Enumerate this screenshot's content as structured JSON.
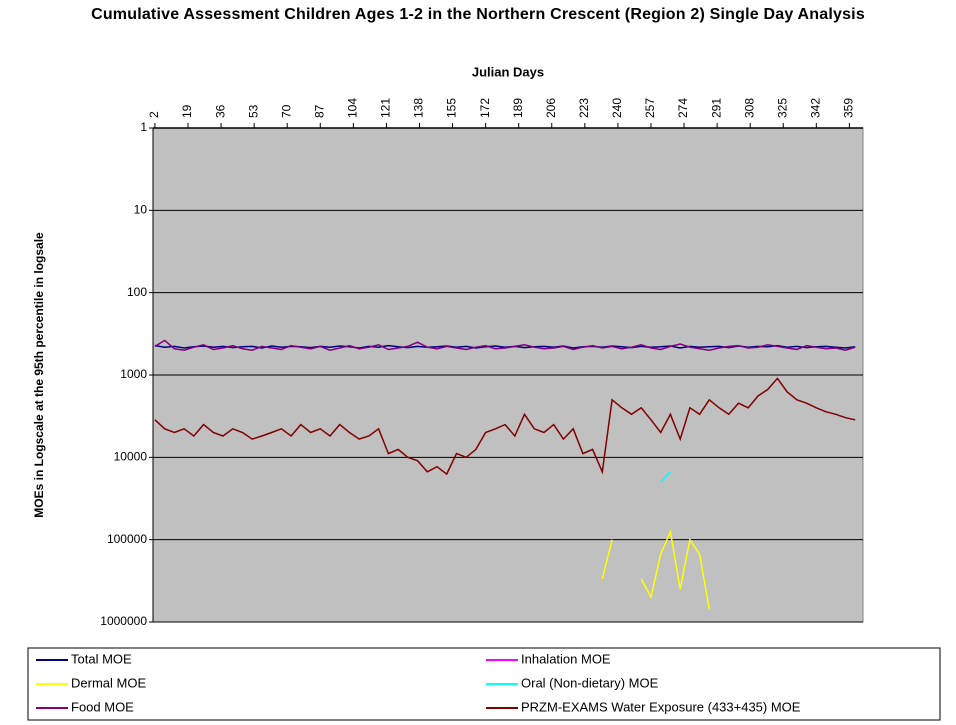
{
  "chart_data": {
    "type": "line",
    "title": "Cumulative Assessment Children Ages 1-2 in the Northern Crescent (Region 2) Single Day Analysis",
    "x_label": "Julian Days",
    "y_label": "MOEs in Logscale at the 95th percentile in logsale",
    "x": [
      2,
      7,
      12,
      17,
      22,
      27,
      32,
      37,
      42,
      47,
      52,
      57,
      62,
      67,
      72,
      77,
      82,
      87,
      92,
      97,
      102,
      107,
      112,
      117,
      122,
      127,
      132,
      137,
      142,
      147,
      152,
      157,
      162,
      167,
      172,
      177,
      182,
      187,
      192,
      197,
      202,
      207,
      212,
      217,
      222,
      227,
      232,
      237,
      242,
      247,
      252,
      257,
      262,
      267,
      272,
      277,
      282,
      287,
      292,
      297,
      302,
      307,
      312,
      317,
      322,
      327,
      332,
      337,
      342,
      347,
      352,
      357,
      362
    ],
    "xlim": [
      1,
      366
    ],
    "xticks": [
      2,
      19,
      36,
      53,
      70,
      87,
      104,
      121,
      138,
      155,
      172,
      189,
      206,
      223,
      240,
      257,
      274,
      291,
      308,
      325,
      342,
      359
    ],
    "ylim": [
      1,
      1000000
    ],
    "yticks": [
      1,
      10,
      100,
      1000,
      10000,
      100000,
      1000000
    ],
    "y_scale": "log",
    "y_reversed": true,
    "x_axis_position": "top",
    "grid": true,
    "plot_background": "#c0c0c0",
    "legend_position": "bottom",
    "series": [
      {
        "name": "Total MOE",
        "color": "#000080",
        "values": [
          440,
          460,
          450,
          470,
          455,
          445,
          460,
          450,
          465,
          455,
          450,
          470,
          445,
          460,
          450,
          455,
          465,
          450,
          460,
          445,
          455,
          470,
          450,
          460,
          440,
          455,
          465,
          450,
          460,
          455,
          445,
          460,
          450,
          470,
          455,
          445,
          460,
          450,
          465,
          455,
          450,
          460,
          445,
          470,
          455,
          450,
          460,
          445,
          455,
          465,
          450,
          460,
          455,
          445,
          470,
          450,
          460,
          455,
          450,
          465,
          445,
          460,
          450,
          455,
          440,
          460,
          450,
          465,
          455,
          450,
          460,
          470,
          455
        ]
      },
      {
        "name": "Inhalation MOE",
        "color": "#ff00ff",
        "values": [
          null,
          null,
          null,
          null,
          null,
          null,
          null,
          null,
          null,
          null,
          null,
          null,
          null,
          null,
          null,
          null,
          null,
          null,
          null,
          null,
          null,
          null,
          null,
          null,
          null,
          null,
          null,
          null,
          null,
          null,
          null,
          null,
          null,
          null,
          null,
          null,
          null,
          null,
          null,
          null,
          null,
          null,
          null,
          null,
          null,
          null,
          null,
          null,
          null,
          null,
          null,
          null,
          null,
          null,
          null,
          null,
          null,
          null,
          null,
          null,
          null,
          null,
          null,
          null,
          null,
          null,
          null,
          null,
          null,
          null,
          null,
          null,
          null
        ]
      },
      {
        "name": "Dermal MOE",
        "color": "#ffff00",
        "values": [
          null,
          null,
          null,
          null,
          null,
          null,
          null,
          null,
          null,
          null,
          null,
          null,
          null,
          null,
          null,
          null,
          null,
          null,
          null,
          null,
          null,
          null,
          null,
          null,
          null,
          null,
          null,
          null,
          null,
          null,
          null,
          null,
          null,
          null,
          null,
          null,
          null,
          null,
          null,
          null,
          null,
          null,
          null,
          null,
          null,
          null,
          300000,
          100000,
          null,
          null,
          300000,
          500000,
          150000,
          80000,
          400000,
          100000,
          150000,
          700000,
          null,
          null,
          null,
          null,
          null,
          null,
          null,
          null,
          null,
          null,
          null,
          null,
          null,
          null,
          null
        ]
      },
      {
        "name": "Oral (Non-dietary) MOE",
        "color": "#00ffff",
        "values": [
          null,
          null,
          null,
          null,
          null,
          null,
          null,
          null,
          null,
          null,
          null,
          null,
          null,
          null,
          null,
          null,
          null,
          null,
          null,
          null,
          null,
          null,
          null,
          null,
          null,
          null,
          null,
          null,
          null,
          null,
          null,
          null,
          null,
          null,
          null,
          null,
          null,
          null,
          null,
          null,
          null,
          null,
          null,
          null,
          null,
          null,
          null,
          null,
          null,
          null,
          null,
          null,
          20000,
          15000,
          null,
          null,
          null,
          null,
          null,
          null,
          null,
          null,
          null,
          null,
          null,
          null,
          null,
          null,
          null,
          null,
          null,
          null,
          null
        ]
      },
      {
        "name": "Food MOE",
        "color": "#800080",
        "values": [
          450,
          380,
          480,
          500,
          460,
          430,
          490,
          470,
          440,
          480,
          500,
          450,
          470,
          490,
          440,
          460,
          480,
          450,
          500,
          470,
          440,
          480,
          460,
          430,
          490,
          470,
          450,
          400,
          460,
          480,
          450,
          470,
          490,
          460,
          440,
          480,
          470,
          450,
          430,
          460,
          480,
          470,
          450,
          490,
          460,
          440,
          470,
          450,
          480,
          460,
          430,
          470,
          490,
          450,
          420,
          460,
          480,
          500,
          470,
          450,
          440,
          470,
          460,
          430,
          450,
          470,
          490,
          440,
          460,
          480,
          470,
          500,
          460
        ]
      },
      {
        "name": "PRZM-EXAMS Water Exposure (433+435) MOE",
        "color": "#800000",
        "values": [
          3500,
          4500,
          5000,
          4500,
          5500,
          4000,
          5000,
          5500,
          4500,
          5000,
          6000,
          5500,
          5000,
          4500,
          5500,
          4000,
          5000,
          4500,
          5500,
          4000,
          5000,
          6000,
          5500,
          4500,
          9000,
          8000,
          10000,
          11000,
          15000,
          13000,
          16000,
          9000,
          10000,
          8000,
          5000,
          4500,
          4000,
          5500,
          3000,
          4500,
          5000,
          4000,
          6000,
          4500,
          9000,
          8000,
          15000,
          2000,
          2500,
          3000,
          2500,
          3500,
          5000,
          3000,
          6000,
          2500,
          3000,
          2000,
          2500,
          3000,
          2200,
          2500,
          1800,
          1500,
          1100,
          1600,
          2000,
          2200,
          2500,
          2800,
          3000,
          3300,
          3500
        ]
      }
    ]
  }
}
